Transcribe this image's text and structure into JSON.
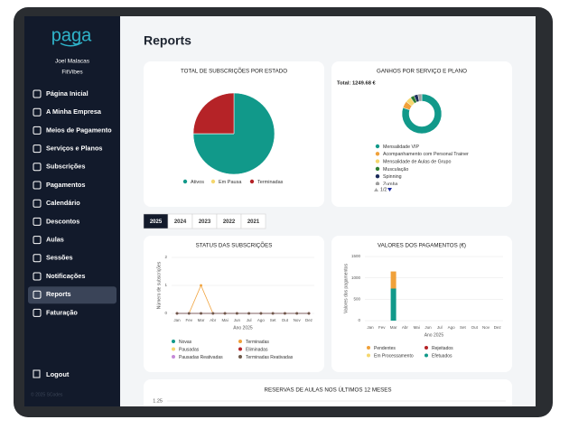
{
  "sidebar": {
    "logo": "paga",
    "user": "Joel Malacas",
    "company": "FitVibes",
    "menu": [
      "Página Inicial",
      "A Minha Empresa",
      "Meios de Pagamento",
      "Serviços e Planos",
      "Subscrições",
      "Pagamentos",
      "Calendário",
      "Descontos",
      "Aulas",
      "Sessões",
      "Notificações",
      "Reports",
      "Faturação"
    ],
    "logout": "Logout",
    "footer": "© 2025 SCodes"
  },
  "main": {
    "title": "Reports",
    "years": [
      "2025",
      "2024",
      "2023",
      "2022",
      "2021"
    ],
    "charts": [
      {
        "type": "pie",
        "title": "TOTAL DE SUBSCRIÇÕES POR ESTADO",
        "categories": [
          "Ativos",
          "Em Pausa",
          "Terminadas"
        ],
        "values": [
          3,
          0,
          1
        ],
        "colors": [
          "#11998a",
          "#f5d76e",
          "#b52327"
        ]
      },
      {
        "type": "donut",
        "title": "GANHOS POR SERVIÇO E PLANO",
        "total_label": "Total: 1249.68 €",
        "categories": [
          "Mensalidade VIP",
          "Acompanhamento com Personal Trainer",
          "Mensalidade de Aulas de Grupo",
          "Musculação",
          "Spinning",
          "Zumba"
        ],
        "values": [
          1000,
          70,
          60,
          40,
          40,
          40
        ],
        "colors": [
          "#11998a",
          "#f0a13a",
          "#f5d76e",
          "#2e7d32",
          "#1a2a5a",
          "#9e9e9e"
        ],
        "page": "1/2"
      },
      {
        "type": "line",
        "title": "STATUS DAS SUBSCRIÇÕES",
        "y_label": "Número de subscrições",
        "x_label": "Ano 2025",
        "categories": [
          "Jan",
          "Fev",
          "Mar",
          "Abr",
          "Mai",
          "Jun",
          "Jul",
          "Ago",
          "Set",
          "Out",
          "Nov",
          "Dez"
        ],
        "ylim": [
          0,
          2
        ],
        "yticks": [
          0,
          1,
          2
        ],
        "series": [
          {
            "name": "Novas",
            "color": "#11998a",
            "values": [
              0,
              0,
              0,
              0,
              0,
              0,
              0,
              0,
              0,
              0,
              0,
              0
            ]
          },
          {
            "name": "Terminadas",
            "color": "#f0a13a",
            "values": [
              0,
              0,
              1,
              0,
              0,
              0,
              0,
              0,
              0,
              0,
              0,
              0
            ]
          },
          {
            "name": "Pausadas",
            "color": "#f5d76e",
            "values": [
              0,
              0,
              0,
              0,
              0,
              0,
              0,
              0,
              0,
              0,
              0,
              0
            ]
          },
          {
            "name": "Eliminadas",
            "color": "#b52327",
            "values": [
              0,
              0,
              0,
              0,
              0,
              0,
              0,
              0,
              0,
              0,
              0,
              0
            ]
          },
          {
            "name": "Pausadas Reativadas",
            "color": "#c58ad8",
            "values": [
              0,
              0,
              0,
              0,
              0,
              0,
              0,
              0,
              0,
              0,
              0,
              0
            ]
          },
          {
            "name": "Terminadas Reativadas",
            "color": "#6d5a4a",
            "values": [
              0,
              0,
              0,
              0,
              0,
              0,
              0,
              0,
              0,
              0,
              0,
              0
            ]
          }
        ]
      },
      {
        "type": "bar",
        "stacked": true,
        "title": "VALORES DOS PAGAMENTOS (€)",
        "y_label": "Valores dos pagamentos",
        "x_label": "Ano 2025",
        "categories": [
          "Jan",
          "Fev",
          "Mar",
          "Abr",
          "Mai",
          "Jun",
          "Jul",
          "Ago",
          "Set",
          "Out",
          "Nov",
          "Dez"
        ],
        "ylim": [
          0,
          1500
        ],
        "yticks": [
          0,
          500,
          1000,
          1500
        ],
        "series": [
          {
            "name": "Pendentes",
            "color": "#f0a13a",
            "values": [
              0,
              0,
              400,
              0,
              0,
              0,
              0,
              0,
              0,
              0,
              0,
              0
            ]
          },
          {
            "name": "Rejeitados",
            "color": "#b52327",
            "values": [
              0,
              0,
              0,
              0,
              0,
              0,
              0,
              0,
              0,
              0,
              0,
              0
            ]
          },
          {
            "name": "Em Processamento",
            "color": "#f5d76e",
            "values": [
              0,
              0,
              0,
              0,
              0,
              0,
              0,
              0,
              0,
              0,
              0,
              0
            ]
          },
          {
            "name": "Efetuados",
            "color": "#11998a",
            "values": [
              0,
              0,
              750,
              0,
              0,
              0,
              0,
              0,
              0,
              0,
              0,
              0
            ]
          }
        ]
      },
      {
        "type": "bar",
        "title": "RESERVAS DE AULAS NOS ÚLTIMOS 12 MESES",
        "ylim": [
          0,
          1.25
        ],
        "yticks": [
          1.25
        ]
      }
    ]
  }
}
